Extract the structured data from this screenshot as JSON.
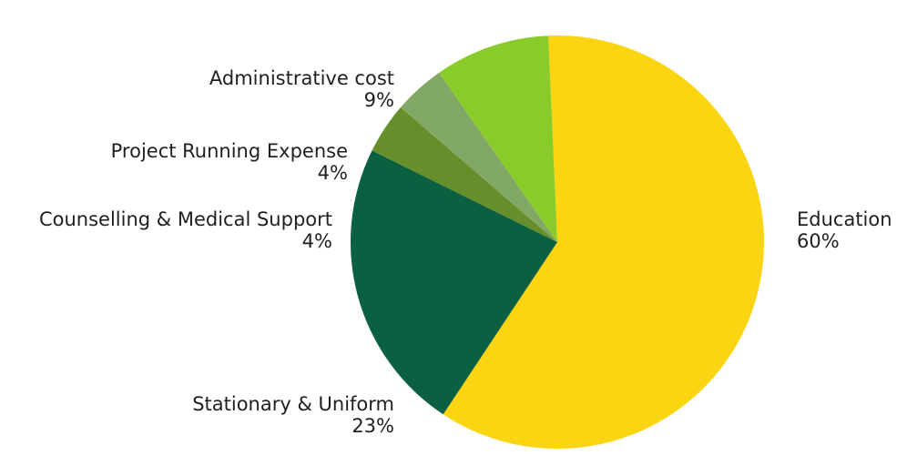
{
  "chart_data": {
    "type": "pie",
    "title": "",
    "slices": [
      {
        "label": "Education",
        "percent_label": "60%",
        "value": 60,
        "color": "#FCD512"
      },
      {
        "label": "Stationary & Uniform",
        "percent_label": "23%",
        "value": 23,
        "color": "#0B6042"
      },
      {
        "label": "Counselling & Medical Support",
        "percent_label": "4%",
        "value": 4,
        "color": "#668E2A"
      },
      {
        "label": "Project Running Expense",
        "percent_label": "4%",
        "value": 4,
        "color": "#82A865"
      },
      {
        "label": "Administrative cost",
        "percent_label": "9%",
        "value": 9,
        "color": "#89CC2A"
      }
    ],
    "legend": "none"
  }
}
